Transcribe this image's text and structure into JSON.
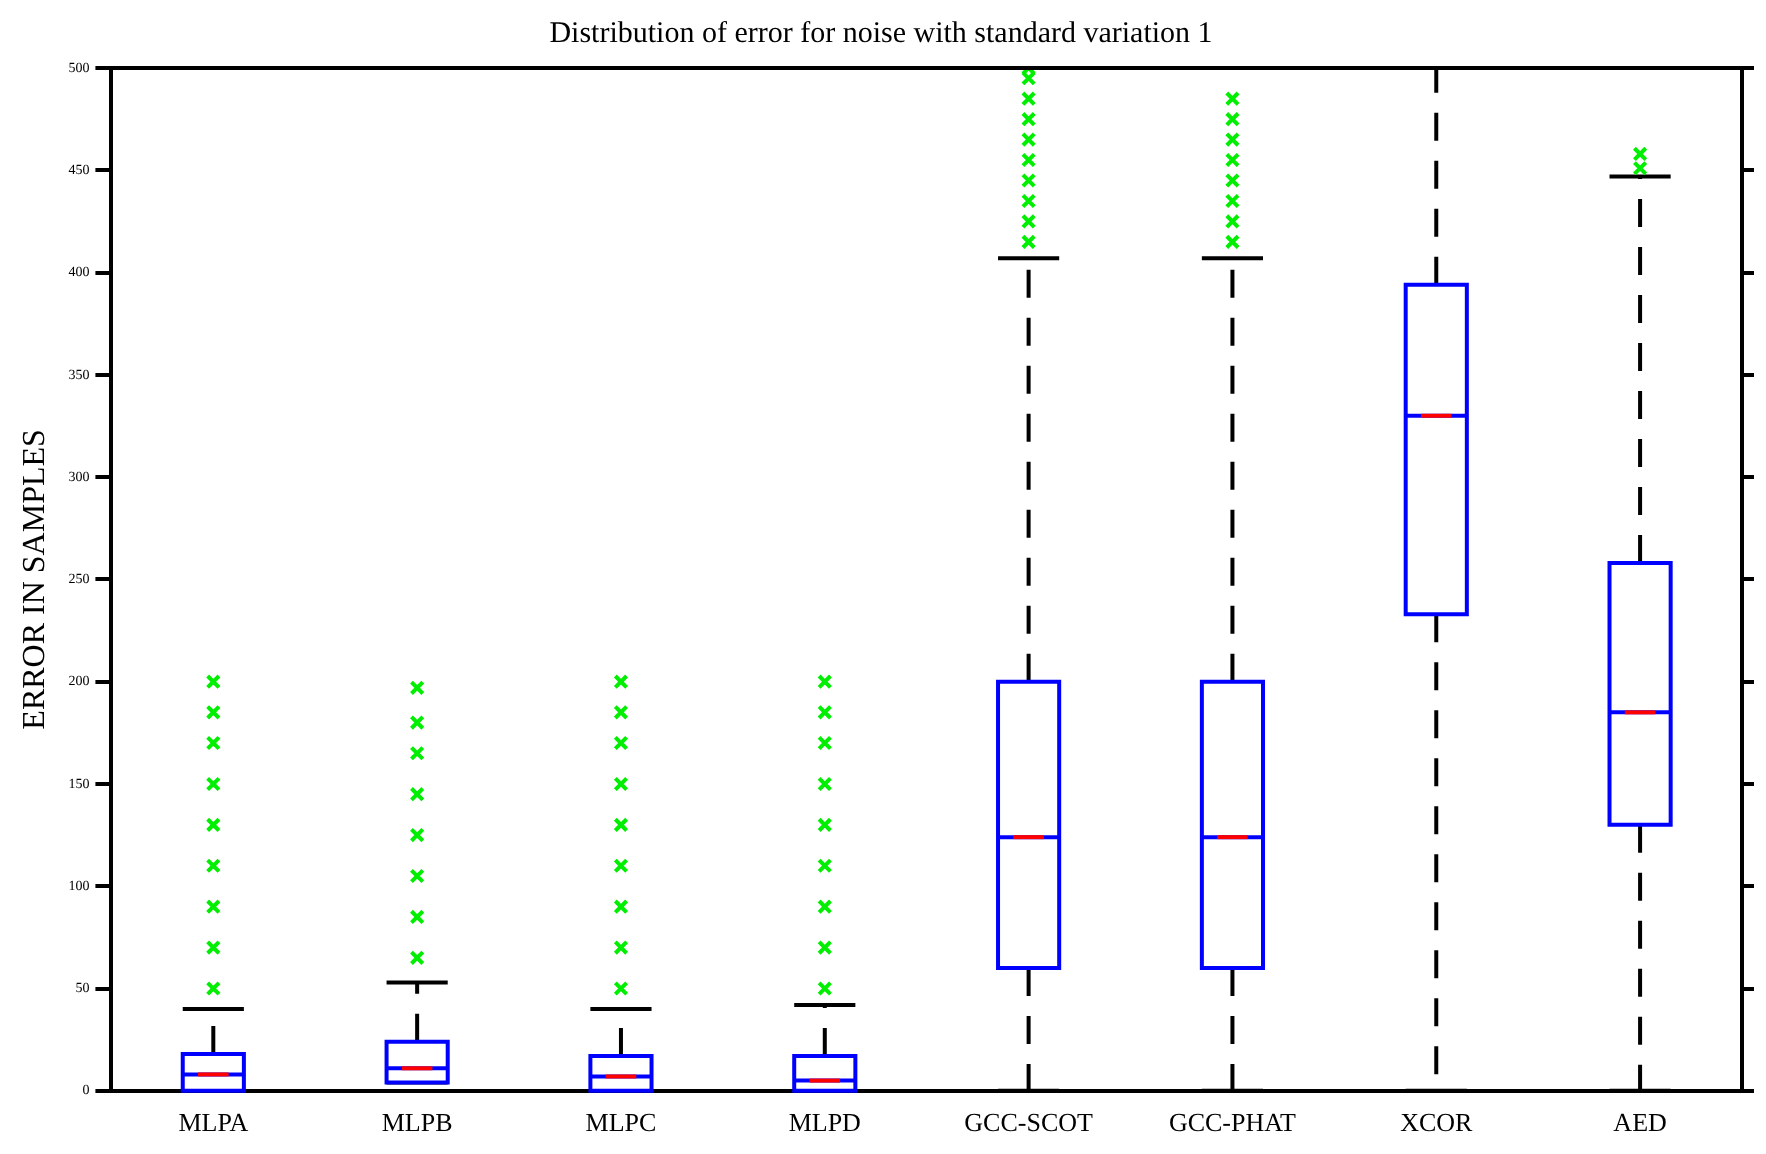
{
  "chart_data": {
    "type": "box",
    "title": "Distribution of error for noise with standard variation 1",
    "ylabel": "ERROR IN SAMPLES",
    "categories": [
      "MLPA",
      "MLPB",
      "MLPC",
      "MLPD",
      "GCC-SCOT",
      "GCC-PHAT",
      "XCOR",
      "AED"
    ],
    "color": "#0000ff",
    "boxes": [
      {
        "low": 0,
        "q1": 0,
        "median": 8,
        "q3": 18,
        "high": 40,
        "outliers": [
          50,
          70,
          90,
          110,
          130,
          150,
          170,
          185,
          200
        ]
      },
      {
        "low": 4,
        "q1": 4,
        "median": 11,
        "q3": 24,
        "high": 53,
        "outliers": [
          65,
          85,
          105,
          125,
          145,
          165,
          180,
          197
        ]
      },
      {
        "low": 0,
        "q1": 0,
        "median": 7,
        "q3": 17,
        "high": 40,
        "outliers": [
          50,
          70,
          90,
          110,
          130,
          150,
          170,
          185,
          200
        ]
      },
      {
        "low": 0,
        "q1": 0,
        "median": 5,
        "q3": 17,
        "high": 42,
        "outliers": [
          50,
          70,
          90,
          110,
          130,
          150,
          170,
          185,
          200
        ]
      },
      {
        "low": 0,
        "q1": 60,
        "median": 124,
        "q3": 200,
        "high": 407,
        "outliers": [
          415,
          425,
          435,
          445,
          455,
          465,
          475,
          485,
          495,
          500
        ]
      },
      {
        "low": 0,
        "q1": 60,
        "median": 124,
        "q3": 200,
        "high": 407,
        "outliers": [
          415,
          425,
          435,
          445,
          455,
          465,
          475,
          485
        ]
      },
      {
        "low": 0,
        "q1": 233,
        "median": 330,
        "q3": 394,
        "high": 500
      },
      {
        "low": 0,
        "q1": 130,
        "median": 185,
        "q3": 258,
        "high": 447,
        "outliers": [
          451,
          458
        ]
      }
    ],
    "ylim": [
      0,
      500
    ],
    "yticks": [
      0,
      50,
      100,
      150,
      200,
      250,
      300,
      350,
      400,
      450,
      500
    ],
    "grid": false,
    "legend": false
  }
}
